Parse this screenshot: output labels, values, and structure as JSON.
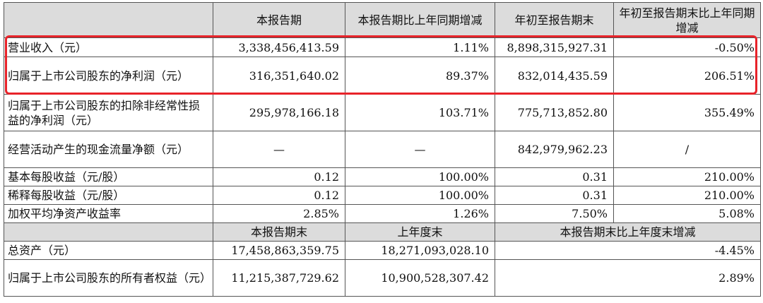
{
  "header1": [
    "",
    "本报告期",
    "本报告期比上年同期增减",
    "年初至报告期末",
    "年初至报告期末比上年同期增减"
  ],
  "rows1": [
    {
      "label": "营业收入（元）",
      "v1": "3,338,456,413.59",
      "v2": "1.11%",
      "v3": "8,898,315,927.31",
      "v4": "-0.50%"
    },
    {
      "label": "归属于上市公司股东的净利润（元）",
      "v1": "316,351,640.02",
      "v2": "89.37%",
      "v3": "832,014,435.59",
      "v4": "206.51%"
    },
    {
      "label": "归属于上市公司股东的扣除非经常性损益的净利润（元）",
      "v1": "295,978,166.18",
      "v2": "103.71%",
      "v3": "775,713,852.80",
      "v4": "355.49%"
    },
    {
      "label": "经营活动产生的现金流量净额（元）",
      "v1": "—",
      "v2": "—",
      "v3": "842,979,962.23",
      "v4": "/"
    },
    {
      "label": "基本每股收益（元/股）",
      "v1": "0.12",
      "v2": "100.00%",
      "v3": "0.31",
      "v4": "210.00%"
    },
    {
      "label": "稀释每股收益（元/股）",
      "v1": "0.12",
      "v2": "100.00%",
      "v3": "0.31",
      "v4": "210.00%"
    },
    {
      "label": "加权平均净资产收益率",
      "v1": "2.85%",
      "v2": "1.26%",
      "v3": "7.50%",
      "v4": "5.08%"
    }
  ],
  "header2": [
    "",
    "本报告期末",
    "上年度末",
    "本报告期末比上年度末增减"
  ],
  "rows2": [
    {
      "label": "总资产（元）",
      "v1": "17,458,863,359.75",
      "v2": "18,271,093,028.10",
      "v3": "-4.45%"
    },
    {
      "label": "归属于上市公司股东的所有者权益（元）",
      "v1": "11,215,387,729.62",
      "v2": "10,900,528,307.42",
      "v3": "2.89%"
    }
  ],
  "highlight_color": "#e8232a",
  "header_bg": "#dcdcdc"
}
